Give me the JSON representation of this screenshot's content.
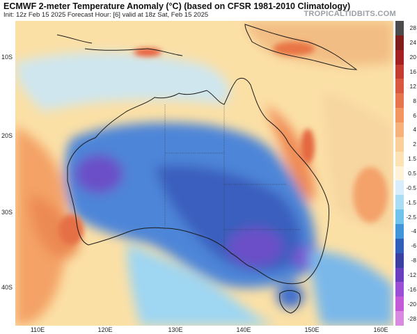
{
  "header": {
    "title": "ECMWF 2-meter Temperature Anomaly (°C) (based on CFSR 1981-2010 Climatology)",
    "subtitle": "Init: 12z Feb 15 2025   Forecast Hour: [6]   valid at 18z Sat, Feb 15 2025",
    "brand": "TROPICALTIDBITS.COM"
  },
  "map": {
    "region": "Australia",
    "lat_labels": [
      "10S",
      "20S",
      "30S",
      "40S"
    ],
    "lon_labels": [
      "110E",
      "120E",
      "130E",
      "140E",
      "150E",
      "160E"
    ]
  },
  "colorbar": {
    "labels": [
      "28",
      "24",
      "20",
      "16",
      "12",
      "8",
      "6",
      "4",
      "2",
      "1.5",
      "0.5",
      "-0.5",
      "-1.5",
      "-2.5",
      "-4",
      "-6",
      "-8",
      "-12",
      "-16",
      "-20",
      "-28"
    ],
    "colors": [
      "#4b4b4b",
      "#7f1d1d",
      "#a32121",
      "#c43b2f",
      "#d9573f",
      "#e8744d",
      "#f2955f",
      "#f7b27a",
      "#fbcf98",
      "#fde3b3",
      "#fff2d6",
      "#d8eefa",
      "#a9ddf3",
      "#6fc3ec",
      "#3f95d8",
      "#2f5fb8",
      "#3a3fa0",
      "#6a3fbf",
      "#9b4fd6",
      "#c35ad8",
      "#d98ae0"
    ]
  },
  "colors": {
    "coast": "#1a1a1a",
    "warm": "#f08a55",
    "cool": "#3f7ad0",
    "cold": "#6a4fc8"
  }
}
